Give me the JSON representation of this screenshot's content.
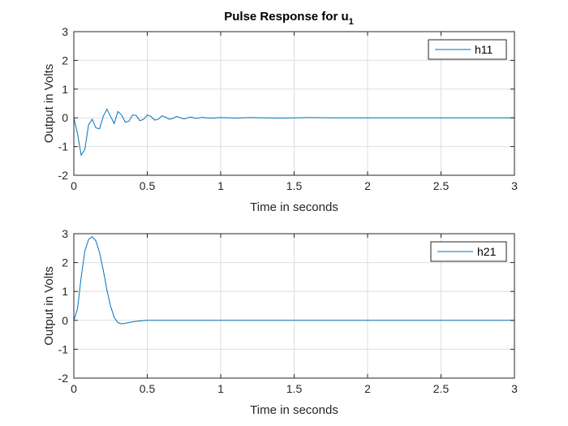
{
  "figure": {
    "title": "Pulse Response for u",
    "title_subscript": "1"
  },
  "colors": {
    "series": "#0072bd",
    "grid": "#dedede",
    "axis": "#262626"
  },
  "chart_data": [
    {
      "type": "line",
      "xlabel": "Time in seconds",
      "ylabel": "Output in Volts",
      "xlim": [
        0,
        3
      ],
      "ylim": [
        -2,
        3
      ],
      "xticks": [
        "0",
        "0.5",
        "1",
        "1.5",
        "2",
        "2.5",
        "3"
      ],
      "yticks": [
        "-2",
        "-1",
        "0",
        "1",
        "2",
        "3"
      ],
      "grid": true,
      "legend_position": "top-right",
      "series": [
        {
          "name": "h11",
          "x": [
            0,
            0.025,
            0.05,
            0.075,
            0.1,
            0.125,
            0.15,
            0.175,
            0.2,
            0.225,
            0.25,
            0.275,
            0.3,
            0.325,
            0.35,
            0.375,
            0.4,
            0.425,
            0.45,
            0.475,
            0.5,
            0.525,
            0.55,
            0.575,
            0.6,
            0.625,
            0.65,
            0.675,
            0.7,
            0.725,
            0.75,
            0.775,
            0.8,
            0.825,
            0.85,
            0.875,
            0.9,
            0.95,
            1.0,
            1.1,
            1.2,
            1.3,
            1.4,
            1.5,
            1.6,
            1.8,
            2.0,
            2.2,
            2.5,
            2.8,
            3.0
          ],
          "y": [
            0,
            -0.55,
            -1.3,
            -1.1,
            -0.25,
            -0.05,
            -0.35,
            -0.38,
            0.05,
            0.3,
            0.05,
            -0.2,
            0.22,
            0.1,
            -0.15,
            -0.12,
            0.1,
            0.08,
            -0.1,
            -0.05,
            0.1,
            0.05,
            -0.08,
            -0.05,
            0.07,
            0.02,
            -0.05,
            -0.02,
            0.05,
            0.0,
            -0.04,
            0.0,
            0.03,
            -0.02,
            -0.01,
            0.02,
            0.0,
            -0.01,
            0.01,
            -0.01,
            0.01,
            0.0,
            -0.01,
            0.0,
            0.01,
            0.0,
            0.0,
            0.0,
            0.0,
            0.0,
            0.0
          ]
        }
      ]
    },
    {
      "type": "line",
      "xlabel": "Time in seconds",
      "ylabel": "Output in Volts",
      "xlim": [
        0,
        3
      ],
      "ylim": [
        -2,
        3
      ],
      "xticks": [
        "0",
        "0.5",
        "1",
        "1.5",
        "2",
        "2.5",
        "3"
      ],
      "yticks": [
        "-2",
        "-1",
        "0",
        "1",
        "2",
        "3"
      ],
      "grid": true,
      "legend_position": "top-right",
      "series": [
        {
          "name": "h21",
          "x": [
            0,
            0.025,
            0.05,
            0.075,
            0.1,
            0.125,
            0.15,
            0.175,
            0.2,
            0.225,
            0.25,
            0.275,
            0.3,
            0.325,
            0.35,
            0.4,
            0.45,
            0.5,
            0.6,
            0.8,
            1.0,
            1.5,
            2.0,
            2.5,
            3.0
          ],
          "y": [
            0,
            0.4,
            1.5,
            2.4,
            2.8,
            2.9,
            2.75,
            2.35,
            1.75,
            1.05,
            0.5,
            0.1,
            -0.08,
            -0.12,
            -0.1,
            -0.05,
            -0.02,
            0.0,
            0.0,
            0.0,
            0.0,
            0.0,
            0.0,
            0.0,
            0.0
          ]
        }
      ]
    }
  ]
}
